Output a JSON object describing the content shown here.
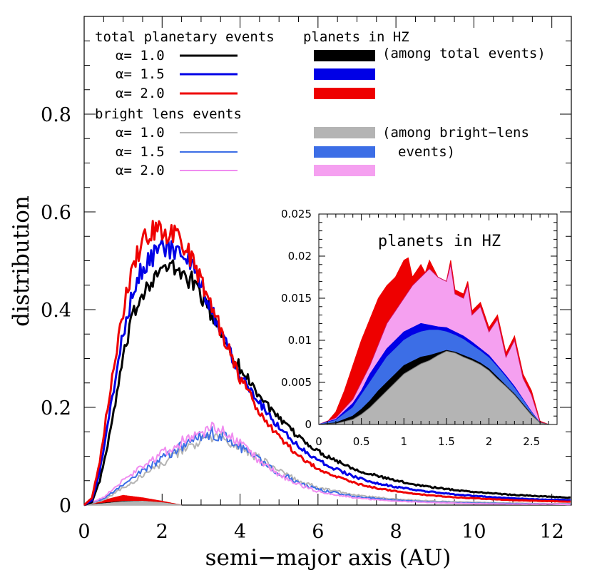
{
  "chart_data": [
    {
      "type": "line",
      "xlabel": "semi−major axis (AU)",
      "ylabel": "distribution",
      "xlim": [
        0,
        12.5
      ],
      "ylim": [
        0,
        1.0
      ],
      "x_ticks": [
        "0",
        "2",
        "4",
        "6",
        "8",
        "10",
        "12"
      ],
      "y_ticks": [
        "0",
        "0.2",
        "0.4",
        "0.6",
        "0.8"
      ],
      "legend": {
        "placement": "top-left",
        "total_title": "total planetary events",
        "bright_title": "bright lens events",
        "hz_title": "planets in HZ",
        "hz_total_note": "(among total events)",
        "hz_bright_note_1": "(among bright−lens",
        "hz_bright_note_2": "events)",
        "alpha_prefix": "α=",
        "alpha_values": [
          "1.0",
          "1.5",
          "2.0"
        ]
      },
      "series": [
        {
          "name": "total planetary events, α= 1.0",
          "color": "#000000",
          "width": 3,
          "x": [
            0,
            0.2,
            0.4,
            0.6,
            0.8,
            1.0,
            1.2,
            1.4,
            1.6,
            1.8,
            2.0,
            2.2,
            2.4,
            2.6,
            2.8,
            3.0,
            3.2,
            3.4,
            3.6,
            3.8,
            4.0,
            4.5,
            5.0,
            5.5,
            6.0,
            6.5,
            7.0,
            7.5,
            8.0,
            8.5,
            9.0,
            9.5,
            10.0,
            10.5,
            11.0,
            11.5,
            12.0,
            12.5
          ],
          "y": [
            0,
            0.006,
            0.05,
            0.12,
            0.21,
            0.3,
            0.37,
            0.42,
            0.45,
            0.47,
            0.48,
            0.485,
            0.48,
            0.47,
            0.455,
            0.43,
            0.4,
            0.37,
            0.34,
            0.31,
            0.28,
            0.225,
            0.175,
            0.14,
            0.11,
            0.09,
            0.072,
            0.06,
            0.05,
            0.042,
            0.036,
            0.031,
            0.027,
            0.024,
            0.021,
            0.019,
            0.017,
            0.015
          ]
        },
        {
          "name": "total planetary events, α= 1.5",
          "color": "#0000e6",
          "width": 3,
          "x": [
            0,
            0.2,
            0.4,
            0.6,
            0.8,
            1.0,
            1.2,
            1.4,
            1.6,
            1.8,
            2.0,
            2.2,
            2.4,
            2.6,
            2.8,
            3.0,
            3.2,
            3.4,
            3.6,
            3.8,
            4.0,
            4.5,
            5.0,
            5.5,
            6.0,
            6.5,
            7.0,
            7.5,
            8.0,
            8.5,
            9.0,
            9.5,
            10.0,
            10.5,
            11.0,
            11.5,
            12.0,
            12.5
          ],
          "y": [
            0,
            0.01,
            0.07,
            0.16,
            0.26,
            0.35,
            0.42,
            0.47,
            0.5,
            0.515,
            0.525,
            0.525,
            0.52,
            0.505,
            0.48,
            0.45,
            0.41,
            0.375,
            0.34,
            0.305,
            0.27,
            0.21,
            0.16,
            0.12,
            0.092,
            0.072,
            0.056,
            0.045,
            0.037,
            0.031,
            0.026,
            0.022,
            0.019,
            0.016,
            0.014,
            0.012,
            0.011,
            0.01
          ]
        },
        {
          "name": "total planetary events, α= 2.0",
          "color": "#ee0000",
          "width": 3,
          "x": [
            0,
            0.2,
            0.4,
            0.6,
            0.8,
            1.0,
            1.2,
            1.4,
            1.6,
            1.8,
            2.0,
            2.2,
            2.4,
            2.6,
            2.8,
            3.0,
            3.2,
            3.4,
            3.6,
            3.8,
            4.0,
            4.5,
            5.0,
            5.5,
            6.0,
            6.5,
            7.0,
            7.5,
            8.0,
            8.5,
            9.0,
            9.5,
            10.0,
            10.5,
            11.0,
            11.5,
            12.0,
            12.5
          ],
          "y": [
            0,
            0.015,
            0.09,
            0.2,
            0.3,
            0.4,
            0.47,
            0.52,
            0.55,
            0.56,
            0.56,
            0.555,
            0.545,
            0.525,
            0.5,
            0.46,
            0.42,
            0.38,
            0.34,
            0.3,
            0.26,
            0.19,
            0.14,
            0.1,
            0.075,
            0.057,
            0.044,
            0.035,
            0.028,
            0.023,
            0.019,
            0.016,
            0.014,
            0.012,
            0.01,
            0.009,
            0.008,
            0.007
          ]
        },
        {
          "name": "bright lens events, α= 1.0",
          "color": "#b4b4b4",
          "width": 2,
          "x": [
            0,
            0.5,
            1.0,
            1.5,
            2.0,
            2.5,
            3.0,
            3.3,
            3.6,
            4.0,
            4.5,
            5.0,
            5.5,
            6.0,
            7.0,
            8.0,
            9.0,
            10.0,
            11.0,
            12.0,
            12.5
          ],
          "y": [
            0,
            0.01,
            0.035,
            0.06,
            0.085,
            0.11,
            0.13,
            0.14,
            0.135,
            0.12,
            0.095,
            0.07,
            0.05,
            0.036,
            0.02,
            0.012,
            0.008,
            0.006,
            0.004,
            0.003,
            0.003
          ]
        },
        {
          "name": "bright lens events, α= 1.5",
          "color": "#3c6ee6",
          "width": 2,
          "x": [
            0,
            0.5,
            1.0,
            1.5,
            2.0,
            2.5,
            3.0,
            3.3,
            3.6,
            4.0,
            4.5,
            5.0,
            5.5,
            6.0,
            7.0,
            8.0,
            9.0,
            10.0,
            11.0,
            12.0,
            12.5
          ],
          "y": [
            0,
            0.013,
            0.042,
            0.07,
            0.095,
            0.12,
            0.14,
            0.148,
            0.14,
            0.12,
            0.092,
            0.066,
            0.046,
            0.032,
            0.017,
            0.01,
            0.006,
            0.004,
            0.003,
            0.002,
            0.002
          ]
        },
        {
          "name": "bright lens events, α= 2.0",
          "color": "#f08cf0",
          "width": 2,
          "x": [
            0,
            0.5,
            1.0,
            1.5,
            2.0,
            2.5,
            3.0,
            3.3,
            3.6,
            4.0,
            4.5,
            5.0,
            5.5,
            6.0,
            7.0,
            8.0,
            9.0,
            10.0,
            11.0,
            12.0,
            12.5
          ],
          "y": [
            0,
            0.016,
            0.05,
            0.08,
            0.105,
            0.13,
            0.15,
            0.16,
            0.15,
            0.125,
            0.09,
            0.062,
            0.042,
            0.028,
            0.014,
            0.008,
            0.005,
            0.003,
            0.002,
            0.002,
            0.001
          ]
        }
      ],
      "hz_bands": [
        {
          "name": "planets in HZ among total events, α= 2.0",
          "color": "#ee0000",
          "x": [
            0,
            0.5,
            1.0,
            1.5,
            2.0,
            2.5
          ],
          "y": [
            0,
            0.01,
            0.02,
            0.015,
            0.008,
            0
          ]
        },
        {
          "name": "planets in HZ among total events, α= 1.0",
          "color": "#000000",
          "x": [
            0,
            0.5,
            1.0,
            1.5,
            2.0,
            2.5
          ],
          "y": [
            0,
            0.004,
            0.008,
            0.008,
            0.005,
            0
          ]
        },
        {
          "name": "planets in HZ among bright-lens events, α= 1.0",
          "color": "#b4b4b4",
          "x": [
            0,
            0.5,
            1.0,
            1.5,
            2.0,
            2.5
          ],
          "y": [
            0,
            0.003,
            0.007,
            0.008,
            0.005,
            0
          ]
        }
      ]
    },
    {
      "type": "area",
      "title": "planets in HZ",
      "xlim": [
        0,
        2.8
      ],
      "ylim": [
        0,
        0.025
      ],
      "x_ticks": [
        "0",
        "0.5",
        "1",
        "1.5",
        "2",
        "2.5"
      ],
      "y_ticks": [
        "0",
        "0.005",
        "0.01",
        "0.015",
        "0.02",
        "0.025"
      ],
      "series": [
        {
          "name": "planets in HZ among total events, α= 2.0",
          "color": "#ee0000",
          "x": [
            0,
            0.1,
            0.2,
            0.3,
            0.4,
            0.5,
            0.6,
            0.7,
            0.8,
            0.9,
            1.0,
            1.05,
            1.1,
            1.2,
            1.25,
            1.3,
            1.4,
            1.5,
            1.55,
            1.6,
            1.7,
            1.75,
            1.8,
            1.9,
            2.0,
            2.1,
            2.2,
            2.3,
            2.4,
            2.5,
            2.6,
            2.7
          ],
          "y": [
            0,
            0.0003,
            0.0015,
            0.004,
            0.007,
            0.01,
            0.0125,
            0.015,
            0.0165,
            0.0175,
            0.0195,
            0.0198,
            0.0175,
            0.019,
            0.018,
            0.0195,
            0.0175,
            0.017,
            0.0195,
            0.016,
            0.0155,
            0.017,
            0.0135,
            0.0145,
            0.0115,
            0.013,
            0.0085,
            0.0105,
            0.006,
            0.004,
            0.0004,
            0
          ]
        },
        {
          "name": "planets in HZ among bright-lens events, α= 2.0",
          "color": "#f5a0f0",
          "x": [
            0,
            0.2,
            0.4,
            0.5,
            0.6,
            0.7,
            0.8,
            0.9,
            1.0,
            1.1,
            1.2,
            1.3,
            1.4,
            1.5,
            1.55,
            1.6,
            1.7,
            1.75,
            1.8,
            1.9,
            2.0,
            2.1,
            2.2,
            2.3,
            2.4,
            2.5,
            2.6,
            2.7
          ],
          "y": [
            0,
            0.0008,
            0.003,
            0.005,
            0.007,
            0.0095,
            0.012,
            0.0135,
            0.015,
            0.0165,
            0.0175,
            0.0185,
            0.0175,
            0.017,
            0.019,
            0.0155,
            0.015,
            0.0165,
            0.013,
            0.014,
            0.011,
            0.0125,
            0.008,
            0.01,
            0.0055,
            0.0035,
            0.0003,
            0
          ]
        },
        {
          "name": "planets in HZ among total events, α= 1.5",
          "color": "#0000e6",
          "x": [
            0,
            0.2,
            0.4,
            0.5,
            0.6,
            0.7,
            0.8,
            0.9,
            1.0,
            1.1,
            1.2,
            1.3,
            1.4,
            1.5,
            1.6,
            1.7,
            1.8,
            1.9,
            2.0,
            2.1,
            2.2,
            2.3,
            2.4,
            2.5,
            2.6,
            2.7
          ],
          "y": [
            0,
            0.0006,
            0.0025,
            0.004,
            0.006,
            0.0075,
            0.009,
            0.01,
            0.011,
            0.0115,
            0.012,
            0.0118,
            0.0116,
            0.0115,
            0.011,
            0.0105,
            0.0098,
            0.009,
            0.0082,
            0.007,
            0.0058,
            0.0045,
            0.003,
            0.0015,
            0.0002,
            0
          ]
        },
        {
          "name": "planets in HZ among bright-lens events, α= 1.5",
          "color": "#3c6ee6",
          "x": [
            0,
            0.2,
            0.4,
            0.5,
            0.6,
            0.7,
            0.8,
            0.9,
            1.0,
            1.1,
            1.2,
            1.3,
            1.4,
            1.5,
            1.6,
            1.7,
            1.8,
            1.9,
            2.0,
            2.1,
            2.2,
            2.3,
            2.4,
            2.5,
            2.6,
            2.7
          ],
          "y": [
            0,
            0.0005,
            0.002,
            0.0035,
            0.005,
            0.0065,
            0.008,
            0.009,
            0.01,
            0.0106,
            0.011,
            0.0112,
            0.0112,
            0.011,
            0.0106,
            0.0101,
            0.0094,
            0.0087,
            0.0079,
            0.0068,
            0.0056,
            0.0043,
            0.0029,
            0.0014,
            0.0002,
            0
          ]
        },
        {
          "name": "planets in HZ among total events, α= 1.0",
          "color": "#000000",
          "x": [
            0,
            0.2,
            0.4,
            0.5,
            0.6,
            0.7,
            0.8,
            0.9,
            1.0,
            1.1,
            1.2,
            1.3,
            1.4,
            1.5,
            1.6,
            1.7,
            1.8,
            1.9,
            2.0,
            2.1,
            2.2,
            2.3,
            2.4,
            2.5,
            2.6,
            2.7
          ],
          "y": [
            0,
            0.0002,
            0.001,
            0.0018,
            0.0028,
            0.004,
            0.005,
            0.006,
            0.007,
            0.0075,
            0.008,
            0.0082,
            0.0085,
            0.0088,
            0.0086,
            0.0082,
            0.0078,
            0.0073,
            0.0066,
            0.0056,
            0.0046,
            0.0036,
            0.0024,
            0.0012,
            0.0002,
            0
          ]
        },
        {
          "name": "planets in HZ among bright-lens events, α= 1.0",
          "color": "#b4b4b4",
          "x": [
            0,
            0.2,
            0.4,
            0.5,
            0.6,
            0.7,
            0.8,
            0.9,
            1.0,
            1.1,
            1.2,
            1.3,
            1.4,
            1.5,
            1.6,
            1.7,
            1.8,
            1.9,
            2.0,
            2.1,
            2.2,
            2.3,
            2.4,
            2.5,
            2.6,
            2.7
          ],
          "y": [
            0,
            0.0001,
            0.0006,
            0.0012,
            0.002,
            0.003,
            0.004,
            0.005,
            0.006,
            0.0066,
            0.0072,
            0.0076,
            0.0082,
            0.0087,
            0.0085,
            0.008,
            0.0076,
            0.0071,
            0.0064,
            0.0054,
            0.0045,
            0.0035,
            0.0023,
            0.0011,
            0.0002,
            0
          ]
        }
      ]
    }
  ]
}
